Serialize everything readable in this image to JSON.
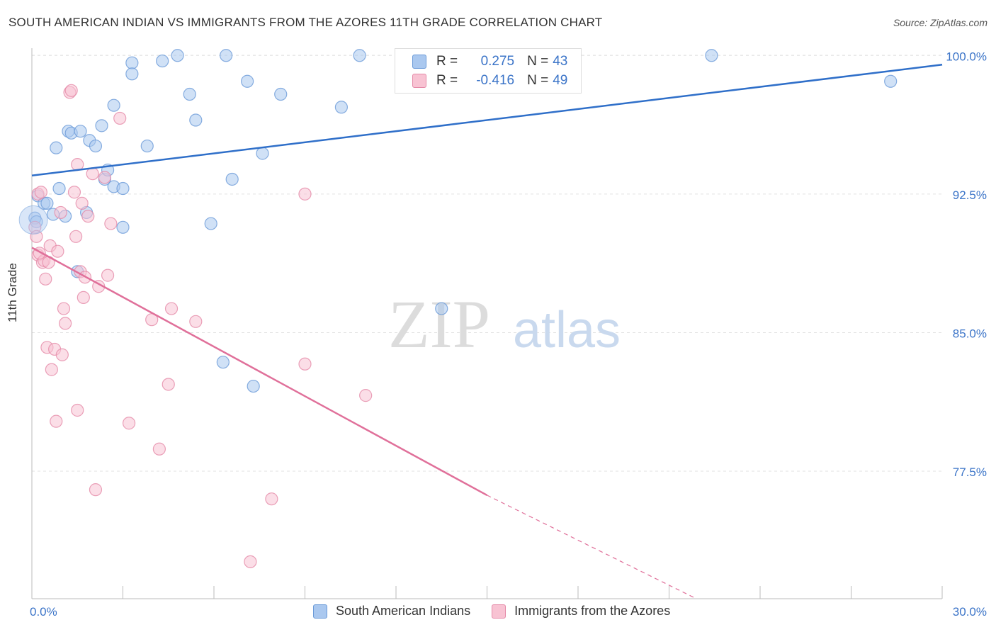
{
  "title": "SOUTH AMERICAN INDIAN VS IMMIGRANTS FROM THE AZORES 11TH GRADE CORRELATION CHART",
  "source": "Source: ZipAtlas.com",
  "watermark": {
    "zip": "ZIP",
    "atlas": "atlas"
  },
  "legend": {
    "r_label": "R =",
    "n_label": "N =",
    "rows": [
      {
        "r": "0.275",
        "n": "43",
        "color": "#aac8ef",
        "border": "#6a9ad8"
      },
      {
        "r": "-0.416",
        "n": "49",
        "color": "#f8c3d3",
        "border": "#e58aa8"
      }
    ]
  },
  "chart_data": {
    "type": "scatter",
    "title": "SOUTH AMERICAN INDIAN VS IMMIGRANTS FROM THE AZORES 11TH GRADE CORRELATION CHART",
    "xlabel": "",
    "ylabel": "11th Grade",
    "xlim": [
      0,
      30
    ],
    "ylim": [
      70.6,
      100.7
    ],
    "x_tick_labels": [
      "0.0%",
      "30.0%"
    ],
    "y_ticks": [
      77.5,
      85.0,
      92.5,
      100.0
    ],
    "y_tick_labels": [
      "77.5%",
      "85.0%",
      "92.5%",
      "100.0%"
    ],
    "grid": true,
    "legend_position": "bottom",
    "series": [
      {
        "name": "South American Indians",
        "color": "#6a9ad8",
        "fill": "#aac8ef",
        "points": [
          [
            0.1,
            91.2
          ],
          [
            0.2,
            92.4
          ],
          [
            0.4,
            92.0
          ],
          [
            0.5,
            92.0
          ],
          [
            0.7,
            91.4
          ],
          [
            0.8,
            95.0
          ],
          [
            0.9,
            92.8
          ],
          [
            1.1,
            91.3
          ],
          [
            1.2,
            95.9
          ],
          [
            1.3,
            95.8
          ],
          [
            1.5,
            88.3
          ],
          [
            1.6,
            95.9
          ],
          [
            1.8,
            91.5
          ],
          [
            1.9,
            95.4
          ],
          [
            2.1,
            95.1
          ],
          [
            2.3,
            96.2
          ],
          [
            2.4,
            93.3
          ],
          [
            2.5,
            93.8
          ],
          [
            2.7,
            92.9
          ],
          [
            2.7,
            97.3
          ],
          [
            3.0,
            92.8
          ],
          [
            3.0,
            90.7
          ],
          [
            3.3,
            99.6
          ],
          [
            3.3,
            99.0
          ],
          [
            3.8,
            95.1
          ],
          [
            4.3,
            99.7
          ],
          [
            4.8,
            100.0
          ],
          [
            5.2,
            97.9
          ],
          [
            5.4,
            96.5
          ],
          [
            5.9,
            90.9
          ],
          [
            6.3,
            83.4
          ],
          [
            6.4,
            100.0
          ],
          [
            6.6,
            93.3
          ],
          [
            7.1,
            98.6
          ],
          [
            7.3,
            82.1
          ],
          [
            7.6,
            94.7
          ],
          [
            8.2,
            97.9
          ],
          [
            10.2,
            97.2
          ],
          [
            10.8,
            100.0
          ],
          [
            13.5,
            86.3
          ],
          [
            22.4,
            100.0
          ],
          [
            28.3,
            98.6
          ],
          [
            0.15,
            91.0
          ]
        ]
      },
      {
        "name": "Immigrants from the Azores",
        "color": "#e58aa8",
        "fill": "#f8c3d3",
        "points": [
          [
            0.1,
            90.7
          ],
          [
            0.15,
            90.2
          ],
          [
            0.2,
            92.5
          ],
          [
            0.2,
            89.2
          ],
          [
            0.3,
            92.6
          ],
          [
            0.35,
            88.8
          ],
          [
            0.4,
            88.9
          ],
          [
            0.45,
            87.9
          ],
          [
            0.5,
            84.2
          ],
          [
            0.6,
            89.7
          ],
          [
            0.65,
            83.0
          ],
          [
            0.75,
            84.1
          ],
          [
            0.8,
            80.2
          ],
          [
            0.85,
            89.4
          ],
          [
            0.95,
            91.5
          ],
          [
            1.0,
            83.8
          ],
          [
            1.05,
            86.3
          ],
          [
            1.1,
            85.5
          ],
          [
            1.25,
            98.0
          ],
          [
            1.3,
            98.1
          ],
          [
            1.4,
            92.6
          ],
          [
            1.45,
            90.2
          ],
          [
            1.5,
            94.1
          ],
          [
            1.5,
            80.8
          ],
          [
            1.6,
            88.3
          ],
          [
            1.65,
            92.0
          ],
          [
            1.7,
            86.9
          ],
          [
            1.75,
            88.0
          ],
          [
            1.85,
            91.3
          ],
          [
            2.0,
            93.6
          ],
          [
            2.1,
            76.5
          ],
          [
            2.2,
            87.5
          ],
          [
            2.4,
            93.4
          ],
          [
            2.5,
            88.1
          ],
          [
            2.6,
            90.9
          ],
          [
            2.9,
            96.6
          ],
          [
            3.2,
            80.1
          ],
          [
            3.95,
            85.7
          ],
          [
            4.2,
            78.7
          ],
          [
            4.5,
            82.2
          ],
          [
            4.6,
            86.3
          ],
          [
            5.4,
            85.6
          ],
          [
            7.2,
            72.6
          ],
          [
            7.9,
            76.0
          ],
          [
            9.0,
            92.5
          ],
          [
            9.0,
            83.3
          ],
          [
            11.0,
            81.6
          ],
          [
            0.25,
            89.3
          ],
          [
            0.55,
            88.8
          ]
        ]
      }
    ],
    "trendlines": [
      {
        "series": "South American Indians",
        "x": [
          0,
          30
        ],
        "y": [
          93.5,
          99.5
        ],
        "dashed_from": null
      },
      {
        "series": "Immigrants from the Azores",
        "x": [
          0,
          15
        ],
        "y": [
          89.6,
          76.2
        ],
        "dashed_to": [
          21.9,
          70.6
        ]
      }
    ]
  }
}
